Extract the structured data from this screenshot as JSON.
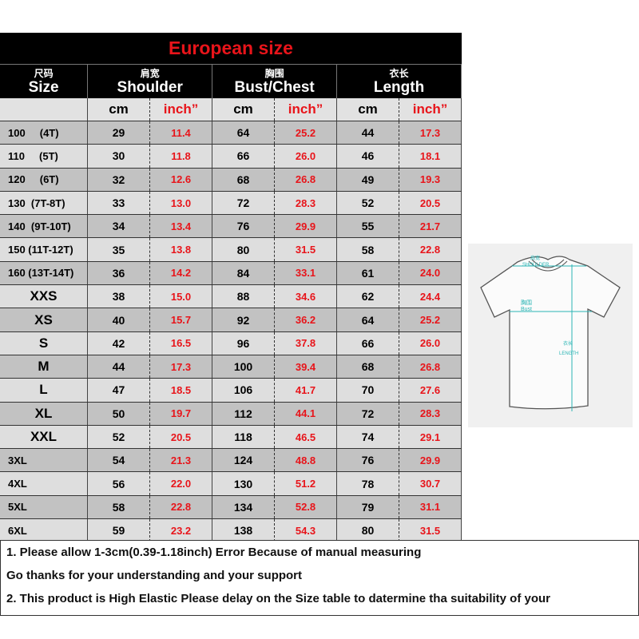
{
  "title": "European size",
  "colors": {
    "title": "#e8141a",
    "inch_values": "#e8141a",
    "header_bg": "#000000",
    "row_dark": "#c2c2c2",
    "row_light": "#dedede",
    "diagram_lines": "#2bb5b5"
  },
  "headers": [
    {
      "cn": "尺码",
      "en": "Size"
    },
    {
      "cn": "肩宽",
      "en": "Shoulder"
    },
    {
      "cn": "胸围",
      "en": "Bust/Chest"
    },
    {
      "cn": "衣长",
      "en": "Length"
    }
  ],
  "units": {
    "cm": "cm",
    "inch": "inch”"
  },
  "rows": [
    {
      "size": "100     (4T)",
      "vals": [
        "29",
        "11.4",
        "64",
        "25.2",
        "44",
        "17.3"
      ]
    },
    {
      "size": "110     (5T)",
      "vals": [
        "30",
        "11.8",
        "66",
        "26.0",
        "46",
        "18.1"
      ]
    },
    {
      "size": "120     (6T)",
      "vals": [
        "32",
        "12.6",
        "68",
        "26.8",
        "49",
        "19.3"
      ]
    },
    {
      "size": "130  (7T-8T)",
      "vals": [
        "33",
        "13.0",
        "72",
        "28.3",
        "52",
        "20.5"
      ]
    },
    {
      "size": "140  (9T-10T)",
      "vals": [
        "34",
        "13.4",
        "76",
        "29.9",
        "55",
        "21.7"
      ]
    },
    {
      "size": "150 (11T-12T)",
      "vals": [
        "35",
        "13.8",
        "80",
        "31.5",
        "58",
        "22.8"
      ]
    },
    {
      "size": "160 (13T-14T)",
      "vals": [
        "36",
        "14.2",
        "84",
        "33.1",
        "61",
        "24.0"
      ]
    },
    {
      "size": "XXS",
      "vals": [
        "38",
        "15.0",
        "88",
        "34.6",
        "62",
        "24.4"
      ]
    },
    {
      "size": "XS",
      "vals": [
        "40",
        "15.7",
        "92",
        "36.2",
        "64",
        "25.2"
      ]
    },
    {
      "size": "S",
      "vals": [
        "42",
        "16.5",
        "96",
        "37.8",
        "66",
        "26.0"
      ]
    },
    {
      "size": "M",
      "vals": [
        "44",
        "17.3",
        "100",
        "39.4",
        "68",
        "26.8"
      ]
    },
    {
      "size": "L",
      "vals": [
        "47",
        "18.5",
        "106",
        "41.7",
        "70",
        "27.6"
      ]
    },
    {
      "size": "XL",
      "vals": [
        "50",
        "19.7",
        "112",
        "44.1",
        "72",
        "28.3"
      ]
    },
    {
      "size": "XXL",
      "vals": [
        "52",
        "20.5",
        "118",
        "46.5",
        "74",
        "29.1"
      ]
    },
    {
      "size": "3XL",
      "vals": [
        "54",
        "21.3",
        "124",
        "48.8",
        "76",
        "29.9"
      ]
    },
    {
      "size": "4XL",
      "vals": [
        "56",
        "22.0",
        "130",
        "51.2",
        "78",
        "30.7"
      ]
    },
    {
      "size": "5XL",
      "vals": [
        "58",
        "22.8",
        "134",
        "52.8",
        "79",
        "31.1"
      ]
    },
    {
      "size": "6XL",
      "vals": [
        "59",
        "23.2",
        "138",
        "54.3",
        "80",
        "31.5"
      ]
    }
  ],
  "diagram": {
    "shoulder_cn": "肩宽",
    "shoulder_en": "SHOULDER",
    "bust_cn": "胸围",
    "bust_en": "Bust",
    "length_cn": "衣长",
    "length_en": "LENGTH"
  },
  "notes": [
    "1. Please allow 1-3cm(0.39-1.18inch) Error Because of manual measuring",
    "Go thanks for your understanding and your support",
    "2. This product is High Elastic  Please delay on the Size table to datermine tha suitability of your"
  ]
}
